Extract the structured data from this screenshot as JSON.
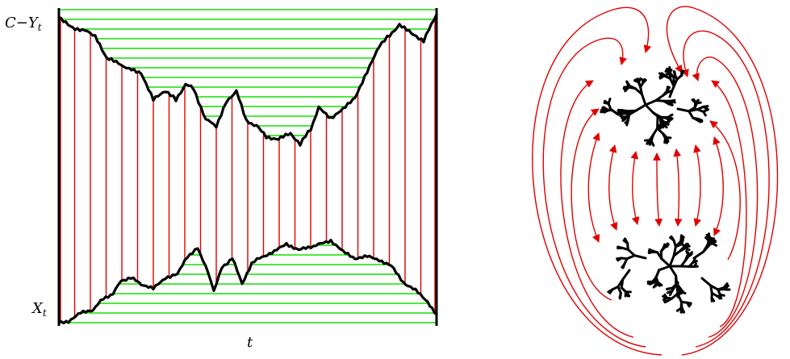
{
  "left_figure": {
    "top_label_main": "C−Y",
    "top_label_sub": "t",
    "bottom_label_main": "X",
    "bottom_label_sub": "t",
    "axis_label": "t"
  },
  "colors": {
    "boundary_curve": "#000000",
    "vertical_lines": "#e10000",
    "horizontal_lines": "#12e000",
    "arrows": "#e10000",
    "trees": "#000000"
  }
}
